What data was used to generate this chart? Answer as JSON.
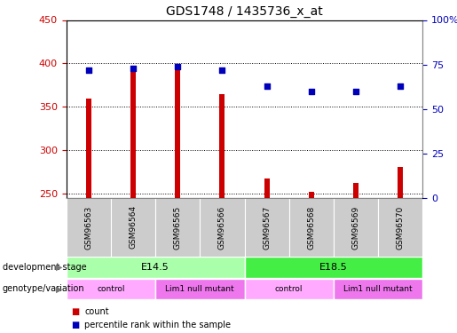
{
  "title": "GDS1748 / 1435736_x_at",
  "samples": [
    "GSM96563",
    "GSM96564",
    "GSM96565",
    "GSM96566",
    "GSM96567",
    "GSM96568",
    "GSM96569",
    "GSM96570"
  ],
  "counts": [
    360,
    397,
    392,
    365,
    268,
    252,
    263,
    281
  ],
  "percentile_ranks": [
    72,
    73,
    74,
    72,
    63,
    60,
    60,
    63
  ],
  "ylim_left": [
    245,
    450
  ],
  "ylim_right": [
    0,
    100
  ],
  "yticks_left": [
    250,
    300,
    350,
    400,
    450
  ],
  "yticks_right": [
    0,
    25,
    50,
    75,
    100
  ],
  "ytick_labels_right": [
    "0",
    "25",
    "50",
    "75",
    "100%"
  ],
  "bar_color": "#cc0000",
  "dot_color": "#0000bb",
  "bar_width": 0.12,
  "development_stages": [
    {
      "label": "E14.5",
      "start": 0,
      "end": 4,
      "color": "#aaffaa"
    },
    {
      "label": "E18.5",
      "start": 4,
      "end": 8,
      "color": "#44ee44"
    }
  ],
  "genotypes": [
    {
      "label": "control",
      "start": 0,
      "end": 2,
      "color": "#ffaaff"
    },
    {
      "label": "Lim1 null mutant",
      "start": 2,
      "end": 4,
      "color": "#ee77ee"
    },
    {
      "label": "control",
      "start": 4,
      "end": 6,
      "color": "#ffaaff"
    },
    {
      "label": "Lim1 null mutant",
      "start": 6,
      "end": 8,
      "color": "#ee77ee"
    }
  ],
  "ylabel_left_color": "#cc0000",
  "ylabel_right_color": "#0000bb",
  "sample_bg": "#cccccc",
  "fig_width": 5.15,
  "fig_height": 3.75,
  "dpi": 100
}
